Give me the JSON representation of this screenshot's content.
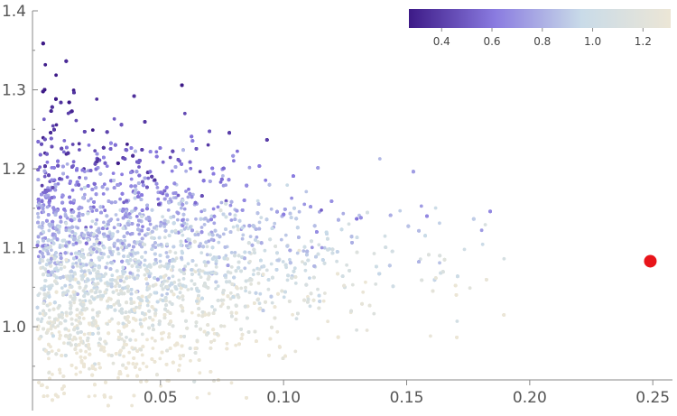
{
  "chart_data": {
    "type": "scatter",
    "title": "",
    "xlabel": "",
    "ylabel": "",
    "xlim": [
      -0.002,
      0.258
    ],
    "ylim": [
      0.887,
      1.4
    ],
    "x_ticks": [
      {
        "value": 0.05,
        "label": "0.05"
      },
      {
        "value": 0.1,
        "label": "0.10"
      },
      {
        "value": 0.15,
        "label": "0.15"
      },
      {
        "value": 0.2,
        "label": "0.20"
      },
      {
        "value": 0.25,
        "label": "0.25"
      }
    ],
    "y_ticks": [
      {
        "value": 1.0,
        "label": "1.0"
      },
      {
        "value": 1.1,
        "label": "1.1"
      },
      {
        "value": 1.2,
        "label": "1.2"
      },
      {
        "value": 1.3,
        "label": "1.3"
      },
      {
        "value": 1.4,
        "label": "1.4"
      }
    ],
    "colorbar": {
      "range": [
        0.27,
        1.31
      ],
      "ticks": [
        {
          "value": 0.4,
          "label": "0.4"
        },
        {
          "value": 0.6,
          "label": "0.6"
        },
        {
          "value": 0.8,
          "label": "0.8"
        },
        {
          "value": 1.0,
          "label": "1.0"
        },
        {
          "value": 1.2,
          "label": "1.2"
        }
      ],
      "colors": [
        "#3d1a87",
        "#8a7be0",
        "#c9dbe8",
        "#ece6d6"
      ]
    },
    "series": [
      {
        "type": "scatter-cloud",
        "color_scale": "colorbar",
        "x_range": [
          0.0,
          0.19
        ],
        "y_center": 1.08,
        "y_spread": 0.1,
        "approx_points": 12000
      },
      {
        "type": "highlight",
        "color": "#e8141a",
        "points": [
          {
            "x": 0.249,
            "y": 1.083
          }
        ]
      }
    ]
  }
}
